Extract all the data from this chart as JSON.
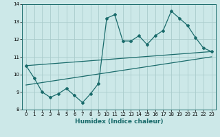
{
  "xlabel": "Humidex (Indice chaleur)",
  "bg_color": "#cce8e8",
  "grid_color": "#aacccc",
  "line_color": "#1a6b6b",
  "xlim": [
    -0.5,
    23.5
  ],
  "ylim": [
    8,
    14
  ],
  "x_ticks": [
    0,
    1,
    2,
    3,
    4,
    5,
    6,
    7,
    8,
    9,
    10,
    11,
    12,
    13,
    14,
    15,
    16,
    17,
    18,
    19,
    20,
    21,
    22,
    23
  ],
  "y_ticks": [
    8,
    9,
    10,
    11,
    12,
    13,
    14
  ],
  "main_x": [
    0,
    1,
    2,
    3,
    4,
    5,
    6,
    7,
    8,
    9,
    10,
    11,
    12,
    13,
    14,
    15,
    16,
    17,
    18,
    19,
    20,
    21,
    22,
    23
  ],
  "main_y": [
    10.5,
    9.8,
    9.0,
    8.7,
    8.9,
    9.2,
    8.8,
    8.4,
    8.9,
    9.5,
    13.2,
    13.4,
    11.9,
    11.9,
    12.2,
    11.7,
    12.2,
    12.5,
    13.6,
    13.2,
    12.8,
    12.1,
    11.5,
    11.3
  ],
  "trend1_x": [
    0,
    23
  ],
  "trend1_y": [
    9.4,
    11.0
  ],
  "trend2_x": [
    0,
    23
  ],
  "trend2_y": [
    10.5,
    11.3
  ]
}
